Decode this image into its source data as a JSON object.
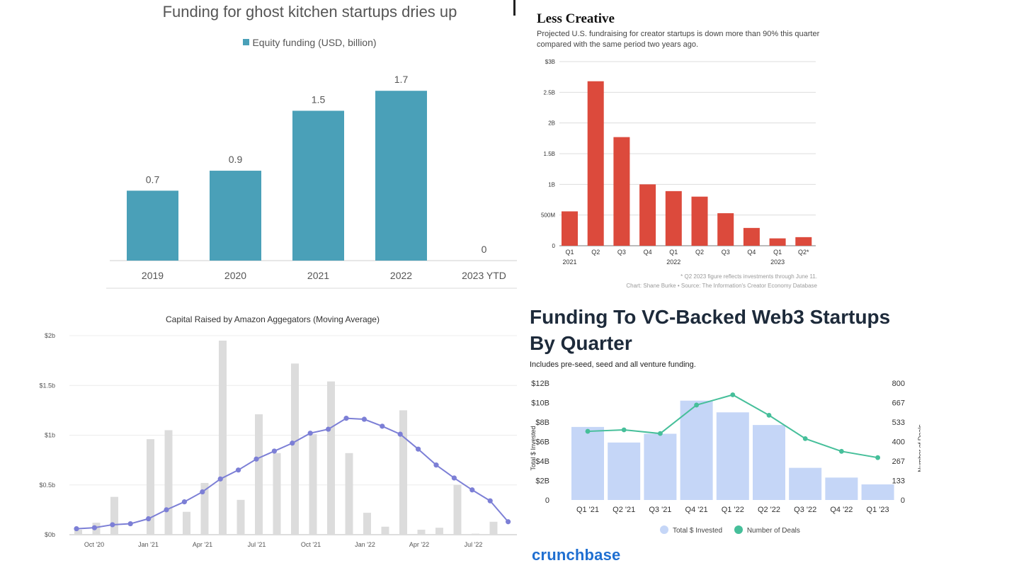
{
  "chart_data": [
    {
      "type": "bar",
      "title": "Funding for ghost kitchen startups dries up",
      "legend": "Equity funding (USD, billion)",
      "categories": [
        "2019",
        "2020",
        "2021",
        "2022",
        "2023 YTD"
      ],
      "values": [
        0.7,
        0.9,
        1.5,
        1.7,
        0
      ],
      "value_labels": [
        "0.7",
        "0.9",
        "1.5",
        "1.7",
        "0"
      ],
      "ylim": [
        0,
        1.9
      ],
      "grid": false,
      "color": "#4aa0b8"
    },
    {
      "type": "bar",
      "title": "Less Creative",
      "subtitle": "Projected U.S. fundraising for creator startups is down more than 90% this quarter compared with the same period two years ago.",
      "categories": [
        "Q1",
        "Q2",
        "Q3",
        "Q4",
        "Q1",
        "Q2",
        "Q3",
        "Q4",
        "Q1",
        "Q2*"
      ],
      "year_labels": [
        "2021",
        "",
        "",
        "",
        "2022",
        "",
        "",
        "",
        "2023",
        ""
      ],
      "values": [
        0.56,
        2.68,
        1.77,
        1.0,
        0.89,
        0.8,
        0.53,
        0.29,
        0.12,
        0.14
      ],
      "yticks": [
        0,
        0.5,
        1,
        1.5,
        2,
        2.5,
        3
      ],
      "ytick_labels": [
        "0",
        "500M",
        "1B",
        "1.5B",
        "2B",
        "2.5B",
        "$3B"
      ],
      "ylim": [
        0,
        3
      ],
      "grid": true,
      "color": "#dc4a3c",
      "notes": [
        "* Q2 2023 figure reflects investments through June 11.",
        "Chart: Shane Burke • Source: The Information's Creator Economy Database"
      ]
    },
    {
      "type": "bar",
      "title": "Capital Raised by Amazon Aggegators (Moving Average)",
      "bar_values": [
        0.05,
        0.12,
        0.38,
        0.0,
        0.96,
        1.05,
        0.23,
        0.52,
        1.95,
        0.35,
        1.21,
        0.82,
        1.72,
        1.01,
        1.54,
        0.82,
        0.22,
        0.08,
        1.25,
        0.05,
        0.07,
        0.5,
        0.01,
        0.13
      ],
      "line_values": [
        0.06,
        0.07,
        0.1,
        0.11,
        0.16,
        0.25,
        0.33,
        0.43,
        0.56,
        0.65,
        0.76,
        0.84,
        0.92,
        1.02,
        1.06,
        1.17,
        1.16,
        1.09,
        1.01,
        0.86,
        0.7,
        0.57,
        0.45,
        0.34,
        0.13
      ],
      "series": [
        {
          "name": "",
          "values": []
        }
      ],
      "xtick_labels": [
        "Oct '20",
        "Jan '21",
        "Apr '21",
        "Jul '21",
        "Oct '21",
        "Jan '22",
        "Apr '22",
        "Jul '22"
      ],
      "yticks": [
        0,
        0.5,
        1,
        1.5,
        2
      ],
      "ytick_labels": [
        "$0b",
        "$0.5b",
        "$1b",
        "$1.5b",
        "$2b"
      ],
      "ylim": [
        0,
        2
      ],
      "grid": true,
      "bar_color": "#dcdcdc",
      "line_color": "#7c7fd6"
    },
    {
      "type": "bar",
      "title_lines": [
        "Funding To VC-Backed Web3 Startups",
        "By Quarter"
      ],
      "subtitle": "Includes pre-seed, seed and all venture funding.",
      "categories": [
        "Q1 '21",
        "Q2 '21",
        "Q3 '21",
        "Q4 '21",
        "Q1 '22",
        "Q2 '22",
        "Q3 '22",
        "Q4 '22",
        "Q1 '23"
      ],
      "series": [
        {
          "name": "Total $ Invested",
          "values": [
            7.5,
            5.9,
            6.8,
            10.2,
            9.0,
            7.7,
            3.3,
            2.3,
            1.6
          ],
          "color": "#c5d6f7"
        },
        {
          "name": "Number of Deals",
          "values": [
            470,
            480,
            455,
            650,
            720,
            580,
            420,
            333,
            290
          ],
          "color": "#46bf9a"
        }
      ],
      "ylabel": "Total $ Invested",
      "y2label": "Number of Deals",
      "yticks": [
        0,
        2,
        4,
        6,
        8,
        10,
        12
      ],
      "ytick_labels": [
        "0",
        "$2B",
        "$4B",
        "$6B",
        "$8B",
        "$10B",
        "$12B"
      ],
      "y2ticks": [
        0,
        133,
        267,
        400,
        533,
        667,
        800
      ],
      "ylim": [
        0,
        12
      ],
      "y2lim": [
        0,
        800
      ],
      "legend": "bottom-center",
      "brand": "crunchbase"
    }
  ]
}
